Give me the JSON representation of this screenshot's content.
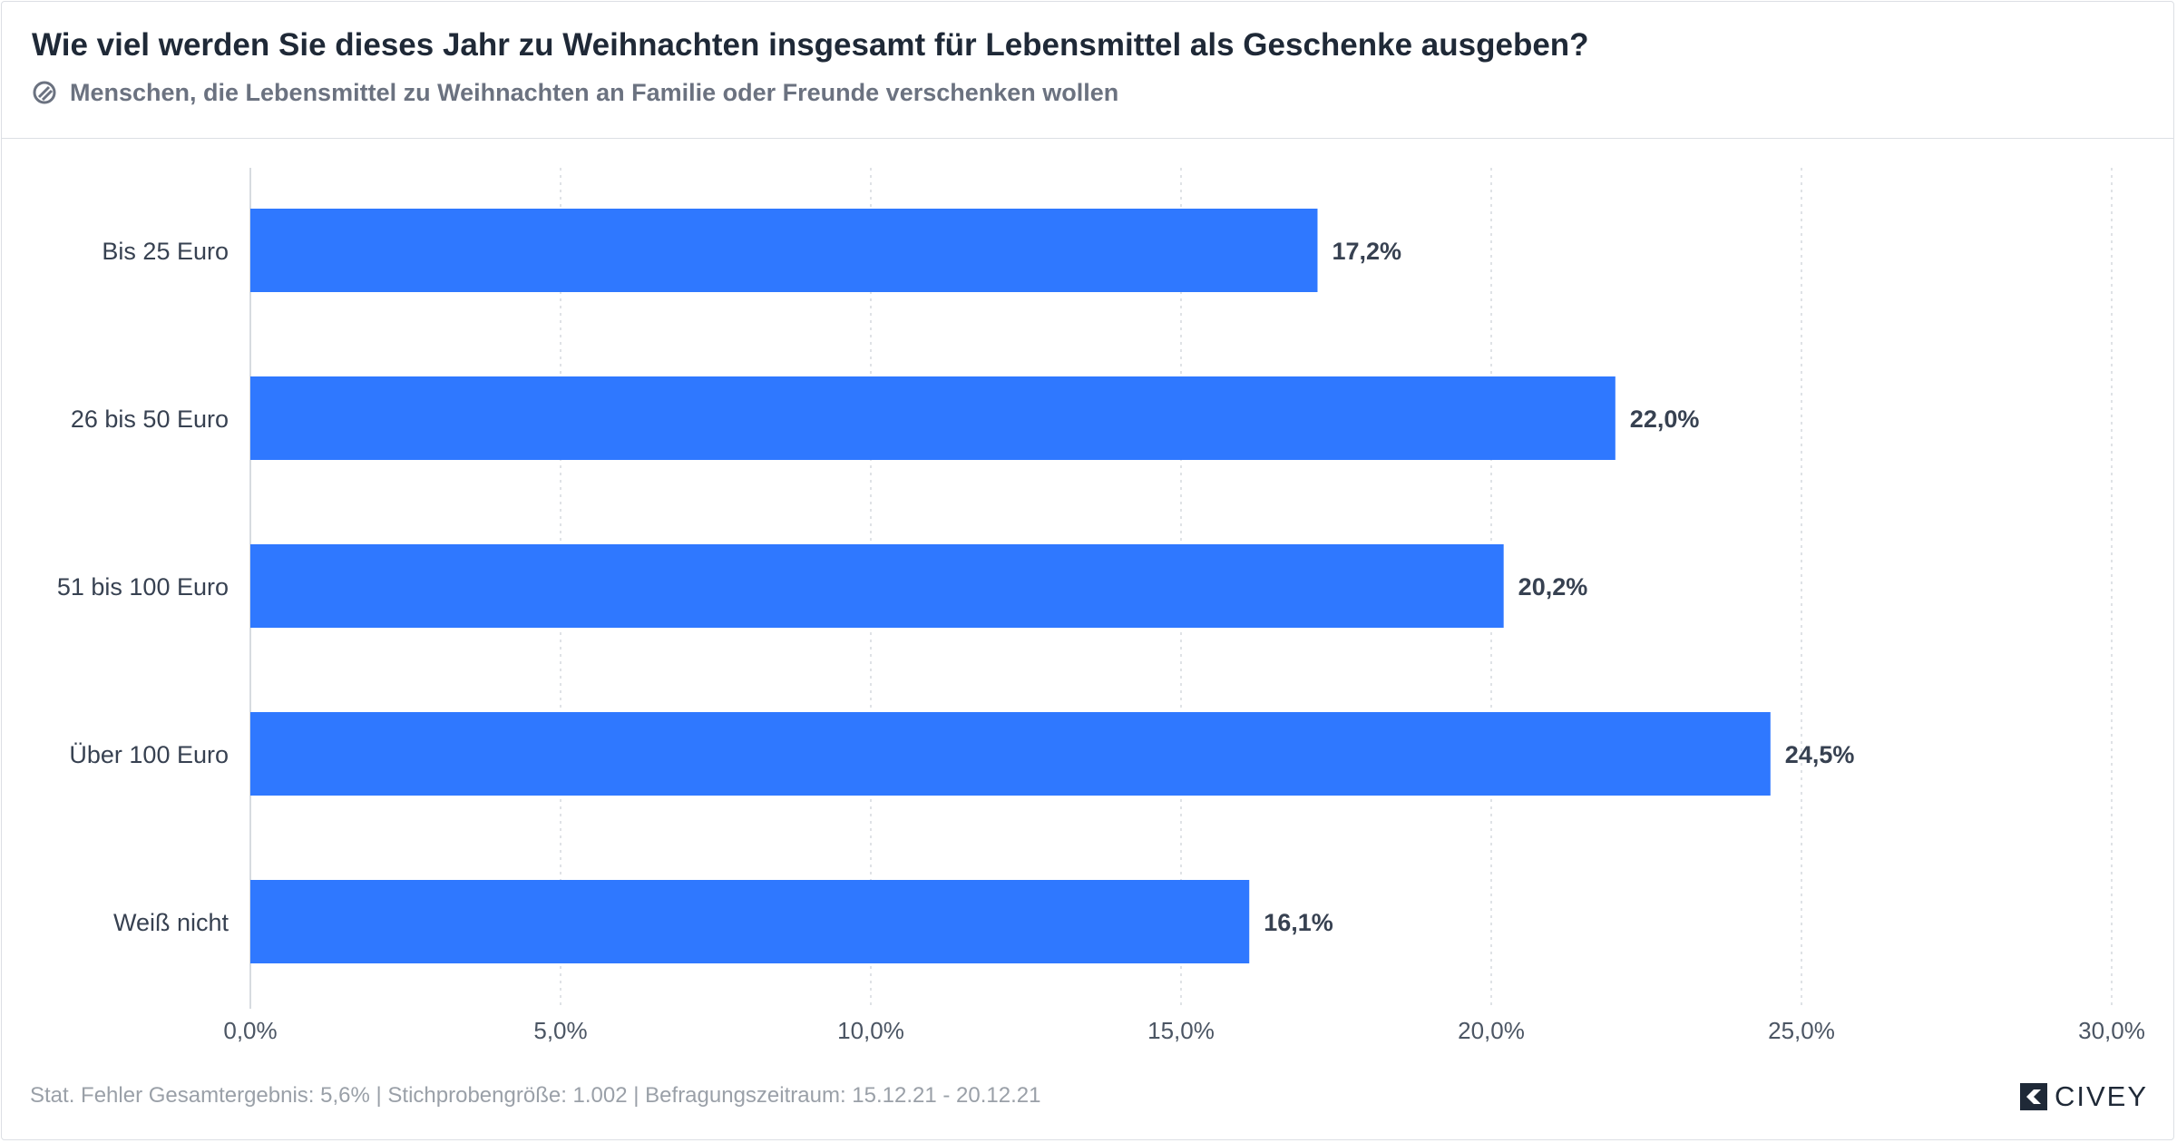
{
  "header": {
    "title": "Wie viel werden Sie dieses Jahr zu Weihnachten insgesamt für Lebensmittel als Geschenke ausgeben?",
    "subtitle": "Menschen, die Lebensmittel zu Weihnachten an Familie oder Freunde verschenken wollen",
    "subtitle_icon": "target-group-icon"
  },
  "chart_data": {
    "type": "bar",
    "orientation": "horizontal",
    "title": "Wie viel werden Sie dieses Jahr zu Weihnachten insgesamt für Lebensmittel als Geschenke ausgeben?",
    "xlabel": "",
    "ylabel": "",
    "categories": [
      "Bis 25 Euro",
      "26 bis 50 Euro",
      "51 bis 100 Euro",
      "Über 100 Euro",
      "Weiß nicht"
    ],
    "values": [
      17.2,
      22.0,
      20.2,
      24.5,
      16.1
    ],
    "value_labels": [
      "17,2%",
      "22,0%",
      "20,2%",
      "24,5%",
      "16,1%"
    ],
    "xlim": [
      0,
      30
    ],
    "xticks": [
      0,
      5,
      10,
      15,
      20,
      25,
      30
    ],
    "xtick_labels": [
      "0,0%",
      "5,0%",
      "10,0%",
      "15,0%",
      "20,0%",
      "25,0%",
      "30,0%"
    ],
    "grid": true,
    "bar_color": "#2f78ff"
  },
  "footer": {
    "stats": "Stat. Fehler Gesamtergebnis: 5,6% | Stichprobengröße: 1.002 | Befragungszeitraum: 15.12.21 - 20.12.21",
    "brand": "CIVEY",
    "brand_icon": "civey-logo-icon"
  }
}
